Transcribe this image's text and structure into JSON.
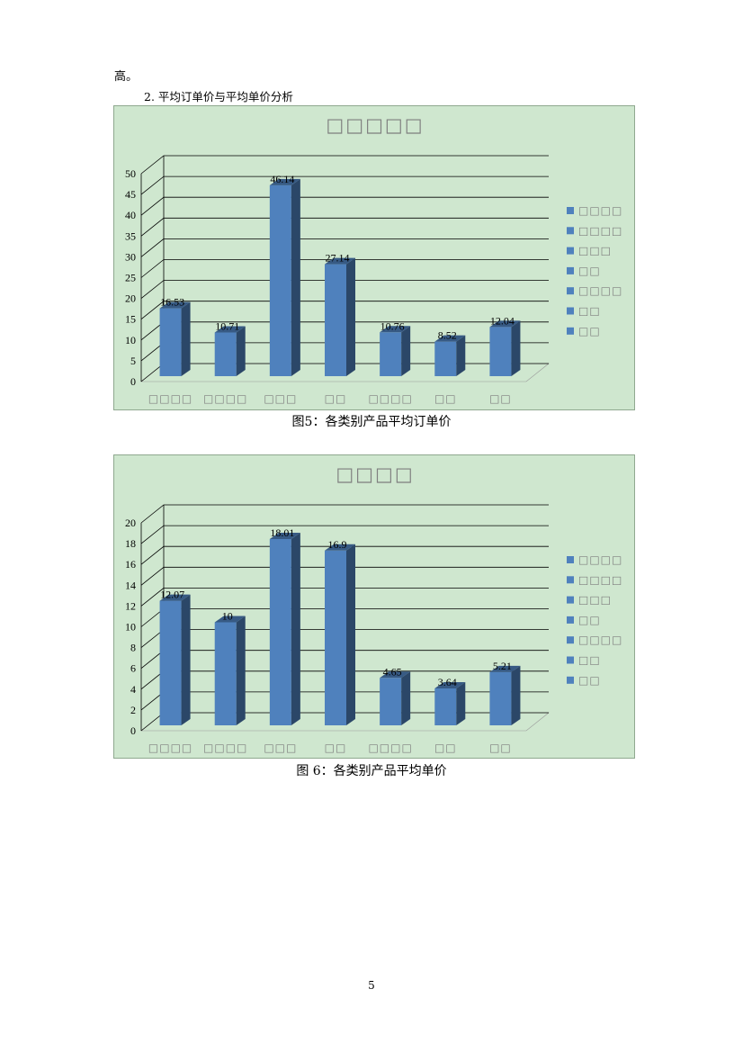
{
  "text": {
    "intro_fragment": "高。",
    "section_heading": "2. 平均订单价与平均单价分析",
    "caption_1": "图5：各类别产品平均订单价",
    "caption_2": "图 6：各类别产品平均单价",
    "page_number": "5"
  },
  "chart_data": [
    {
      "type": "bar",
      "title": "□□□□□",
      "categories": [
        "□□□□",
        "□□□□",
        "□□□",
        "□□",
        "□□□□",
        "□□",
        "□□"
      ],
      "legend": [
        "□□□□",
        "□□□□",
        "□□□",
        "□□",
        "□□□□",
        "□□",
        "□□"
      ],
      "values": [
        16.53,
        10.71,
        46.14,
        27.14,
        10.76,
        8.52,
        12.04
      ],
      "ylim": [
        0,
        50
      ],
      "yticks": [
        0,
        5,
        10,
        15,
        20,
        25,
        30,
        35,
        40,
        45,
        50
      ],
      "grid": true,
      "legend_position": "right",
      "bar_color": "#4f81bd"
    },
    {
      "type": "bar",
      "title": "□□□□",
      "categories": [
        "□□□□",
        "□□□□",
        "□□□",
        "□□",
        "□□□□",
        "□□",
        "□□"
      ],
      "legend": [
        "□□□□",
        "□□□□",
        "□□□",
        "□□",
        "□□□□",
        "□□",
        "□□"
      ],
      "values": [
        12.07,
        10,
        18.01,
        16.9,
        4.65,
        3.64,
        5.21
      ],
      "value_labels": [
        "12.07",
        "10",
        "18.01",
        "16.9",
        "4.65",
        "3.64",
        "5.21"
      ],
      "ylim": [
        0,
        20
      ],
      "yticks": [
        0,
        2,
        4,
        6,
        8,
        10,
        12,
        14,
        16,
        18,
        20
      ],
      "grid": true,
      "legend_position": "right",
      "bar_color": "#4f81bd"
    }
  ]
}
